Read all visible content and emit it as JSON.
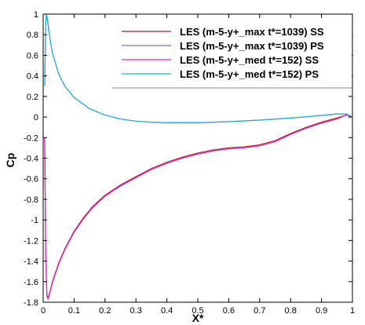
{
  "chart_data": {
    "type": "line",
    "title": "",
    "xlabel": "X*",
    "ylabel": "Cp",
    "xlim": [
      0,
      1
    ],
    "ylim": [
      -1.8,
      1
    ],
    "grid": false,
    "legend_position": "top-right",
    "x_ticks": [
      "0",
      "0.1",
      "0.2",
      "0.3",
      "0.4",
      "0.5",
      "0.6",
      "0.7",
      "0.8",
      "0.9",
      "1"
    ],
    "y_ticks": [
      "1",
      "0.8",
      "0.6",
      "0.4",
      "0.2",
      "0",
      "-0.2",
      "-0.4",
      "-0.6",
      "-0.8",
      "-1",
      "-1.2",
      "-1.4",
      "-1.6",
      "-1.8"
    ],
    "series": [
      {
        "name": "LES (m-5-y+_max t*=1039) SS",
        "color": "#b0202a",
        "x": [
          0.005,
          0.008,
          0.012,
          0.016,
          0.02,
          0.03,
          0.05,
          0.07,
          0.1,
          0.13,
          0.16,
          0.2,
          0.25,
          0.3,
          0.35,
          0.4,
          0.45,
          0.5,
          0.55,
          0.6,
          0.65,
          0.7,
          0.75,
          0.8,
          0.85,
          0.9,
          0.95,
          0.98,
          1.0
        ],
        "y": [
          -0.2,
          -1.3,
          -1.73,
          -1.76,
          -1.72,
          -1.6,
          -1.42,
          -1.28,
          -1.11,
          -0.98,
          -0.87,
          -0.76,
          -0.66,
          -0.58,
          -0.5,
          -0.44,
          -0.39,
          -0.35,
          -0.32,
          -0.3,
          -0.29,
          -0.27,
          -0.23,
          -0.16,
          -0.1,
          -0.05,
          -0.01,
          0.02,
          0.0
        ]
      },
      {
        "name": "LES (m-5-y+_max t*=1039) PS",
        "color": "#7070e0",
        "x": [
          0.005,
          0.008,
          0.01,
          0.012,
          0.015,
          0.02,
          0.03,
          0.05,
          0.07,
          0.1,
          0.15,
          0.2,
          0.25,
          0.3,
          0.35,
          0.4,
          0.5,
          0.6,
          0.7,
          0.8,
          0.9,
          0.95,
          0.98,
          1.0
        ],
        "y": [
          0.3,
          0.9,
          0.99,
          0.98,
          0.92,
          0.8,
          0.62,
          0.42,
          0.3,
          0.19,
          0.08,
          0.02,
          -0.02,
          -0.04,
          -0.05,
          -0.055,
          -0.055,
          -0.045,
          -0.03,
          -0.01,
          0.015,
          0.03,
          0.03,
          0.0
        ]
      },
      {
        "name": "LES (m-5-y+_med t*=152) SS",
        "color": "#e020c8",
        "x": [
          0.005,
          0.008,
          0.012,
          0.016,
          0.02,
          0.03,
          0.05,
          0.07,
          0.1,
          0.13,
          0.16,
          0.2,
          0.25,
          0.3,
          0.35,
          0.4,
          0.45,
          0.5,
          0.55,
          0.6,
          0.65,
          0.7,
          0.75,
          0.8,
          0.85,
          0.9,
          0.95,
          0.98,
          1.0
        ],
        "y": [
          -0.2,
          -1.31,
          -1.74,
          -1.77,
          -1.73,
          -1.61,
          -1.43,
          -1.29,
          -1.12,
          -0.99,
          -0.88,
          -0.77,
          -0.67,
          -0.59,
          -0.51,
          -0.45,
          -0.4,
          -0.36,
          -0.33,
          -0.31,
          -0.3,
          -0.28,
          -0.24,
          -0.17,
          -0.11,
          -0.06,
          -0.02,
          0.02,
          0.0
        ]
      },
      {
        "name": "LES (m-5-y+_med t*=152) PS",
        "color": "#20b0e0",
        "x": [
          0.005,
          0.008,
          0.01,
          0.012,
          0.015,
          0.02,
          0.03,
          0.05,
          0.07,
          0.1,
          0.15,
          0.2,
          0.25,
          0.3,
          0.35,
          0.4,
          0.5,
          0.6,
          0.7,
          0.8,
          0.9,
          0.95,
          0.98,
          1.0
        ],
        "y": [
          0.3,
          0.9,
          0.99,
          0.98,
          0.92,
          0.8,
          0.62,
          0.42,
          0.3,
          0.19,
          0.08,
          0.02,
          -0.02,
          -0.04,
          -0.05,
          -0.055,
          -0.055,
          -0.045,
          -0.03,
          -0.01,
          0.015,
          0.03,
          0.03,
          0.0
        ]
      }
    ]
  }
}
